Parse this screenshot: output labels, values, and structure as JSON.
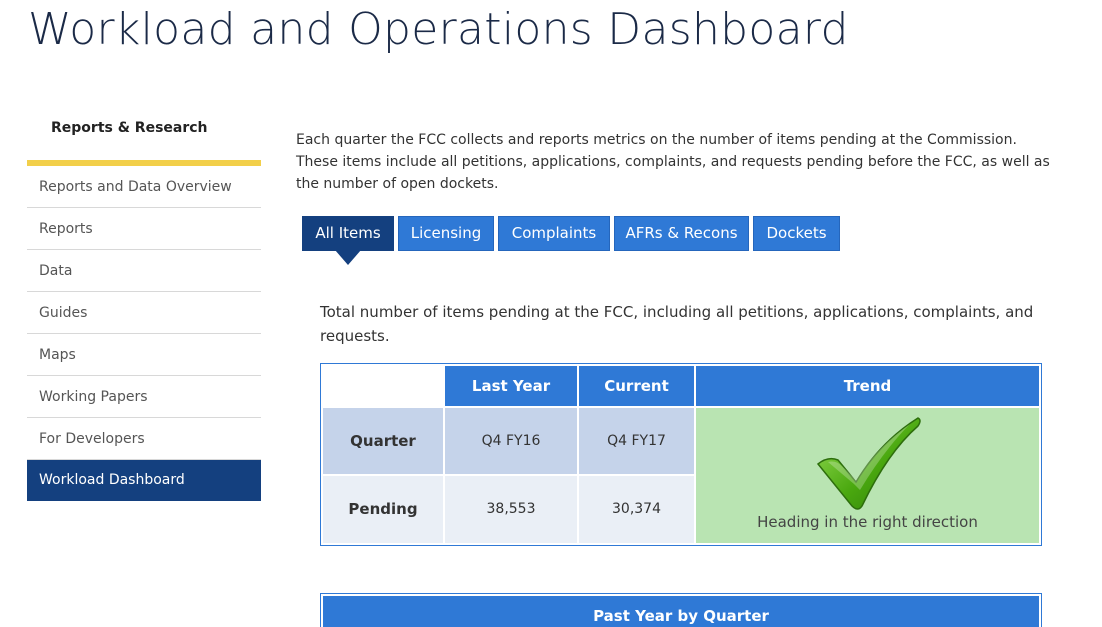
{
  "page": {
    "title": "Workload and Operations Dashboard"
  },
  "sidebar": {
    "heading": "Reports & Research",
    "items": [
      {
        "label": "Reports and Data Overview"
      },
      {
        "label": "Reports"
      },
      {
        "label": "Data"
      },
      {
        "label": "Guides"
      },
      {
        "label": "Maps"
      },
      {
        "label": "Working Papers"
      },
      {
        "label": "For Developers"
      },
      {
        "label": "Workload Dashboard",
        "active": true
      }
    ]
  },
  "intro": "Each quarter the FCC collects and reports metrics on the number of items pending at the Commission. These items include all petitions, applications, complaints, and requests pending before the FCC, as well as the number of open dockets.",
  "tabs": [
    {
      "label": "All Items",
      "active": true
    },
    {
      "label": "Licensing"
    },
    {
      "label": "Complaints"
    },
    {
      "label": "AFRs & Recons"
    },
    {
      "label": "Dockets"
    }
  ],
  "summary": "Total number of items pending at the FCC, including all petitions, applications, complaints, and requests.",
  "stats": {
    "headers": [
      "",
      "Last Year",
      "Current",
      "Trend"
    ],
    "rows": [
      {
        "label": "Quarter",
        "last_year": "Q4 FY16",
        "current": "Q4 FY17"
      },
      {
        "label": "Pending",
        "last_year": "38,553",
        "current": "30,374"
      }
    ],
    "trend_icon": "checkmark-icon",
    "trend_text": "Heading in the right direction",
    "trend_color": "#b9e4b2"
  },
  "past_year": {
    "header": "Past Year by Quarter"
  },
  "colors": {
    "accent": "#2f79d6",
    "active": "#14407f",
    "highlight_bar": "#f2cf4a"
  }
}
